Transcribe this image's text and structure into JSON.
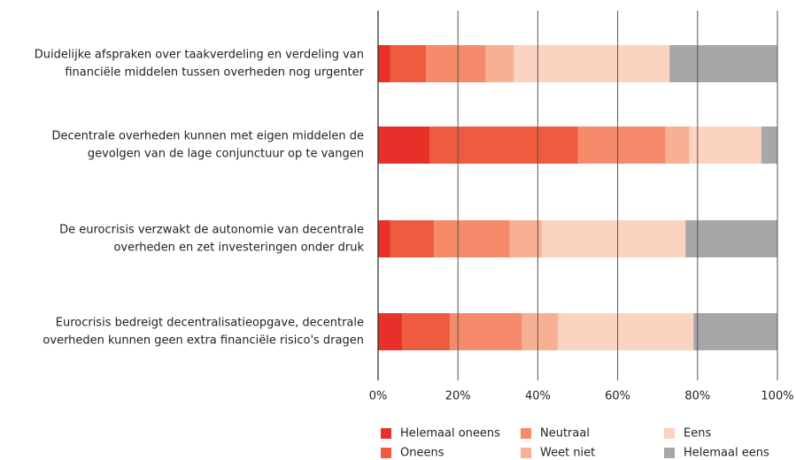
{
  "chart_data": {
    "type": "stacked_barh",
    "categories": [
      [
        "Duidelijke afspraken over taakverdeling en verdeling van",
        "financiële middelen tussen overheden nog urgenter"
      ],
      [
        "Decentrale overheden kunnen met eigen middelen de",
        "gevolgen van de lage conjunctuur op te vangen"
      ],
      [
        "De eurocrisis verzwakt de autonomie van decentrale",
        "overheden en zet investeringen onder druk"
      ],
      [
        "Eurocrisis bedreigt decentralisatieopgave, decentrale",
        "overheden kunnen geen extra financiële risico's dragen"
      ]
    ],
    "series": [
      {
        "name": "Helemaal oneens",
        "color": "#e8302a",
        "values": [
          3,
          13,
          3,
          6
        ]
      },
      {
        "name": "Oneens",
        "color": "#ef5b3f",
        "values": [
          9,
          37,
          11,
          12
        ]
      },
      {
        "name": "Neutraal",
        "color": "#f58b6a",
        "values": [
          15,
          22,
          19,
          18
        ]
      },
      {
        "name": "Weet niet",
        "color": "#f8b095",
        "values": [
          7,
          6,
          8,
          9
        ]
      },
      {
        "name": "Eens",
        "color": "#fcd3c0",
        "values": [
          39,
          18,
          36,
          34
        ]
      },
      {
        "name": "Helemaal eens",
        "color": "#a7a6a8",
        "values": [
          27,
          4,
          23,
          21
        ]
      }
    ],
    "xlim": [
      0,
      100
    ],
    "xticks": [
      {
        "value": 0,
        "label": "0%"
      },
      {
        "value": 20,
        "label": "20%"
      },
      {
        "value": 40,
        "label": "40%"
      },
      {
        "value": 60,
        "label": "60%"
      },
      {
        "value": 80,
        "label": "80%"
      },
      {
        "value": 100,
        "label": "100%"
      }
    ],
    "grid": true,
    "legend": "bottom"
  }
}
